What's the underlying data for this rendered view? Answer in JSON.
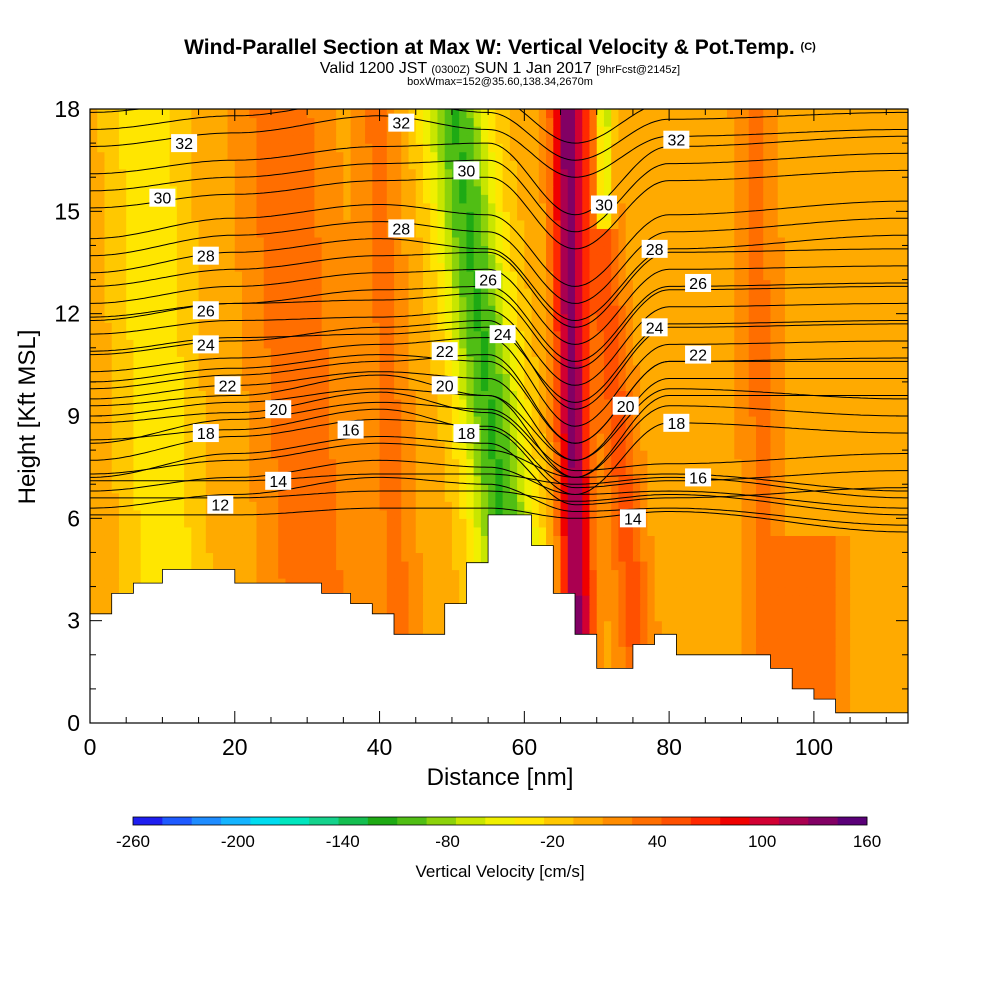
{
  "chart_data": {
    "type": "heatmap",
    "title": "Wind-Parallel Section at Max W: Vertical Velocity & Pot.Temp.",
    "title_mark": "(C)",
    "subtitle": {
      "valid_pre": "Valid 1200 JST",
      "valid_utc": "(0300Z)",
      "valid_date": "SUN 1 Jan 2017",
      "forecast": "[9hrFcst@2145z]"
    },
    "box_info": "boxWmax=152@35.60,138.34,2670m",
    "xlabel": "Distance [nm]",
    "ylabel": "Height [Kft MSL]",
    "xlim": [
      0,
      113
    ],
    "ylim": [
      0,
      18
    ],
    "x_ticks": [
      "0",
      "20",
      "40",
      "60",
      "80",
      "100"
    ],
    "y_ticks": [
      "0",
      "3",
      "6",
      "9",
      "12",
      "15",
      "18"
    ],
    "colorbar": {
      "title": "Vertical Velocity [cm/s]",
      "range": [
        -260,
        160
      ],
      "tick_labels": [
        "-260",
        "-200",
        "-140",
        "-80",
        "-20",
        "40",
        "100",
        "160"
      ],
      "colors": [
        "#1e1ef0",
        "#1e5aff",
        "#1e8cff",
        "#14b4ff",
        "#00dcf0",
        "#00e6be",
        "#14d28c",
        "#14be50",
        "#1eaa14",
        "#50be14",
        "#8cd20a",
        "#c8e600",
        "#f0f000",
        "#ffe600",
        "#ffc800",
        "#ffaa00",
        "#ff8c00",
        "#ff6e00",
        "#ff5000",
        "#ff2800",
        "#f00000",
        "#d20032",
        "#aa0050",
        "#820064",
        "#5a0078"
      ]
    },
    "terrain_profile": {
      "x": [
        0,
        3,
        3,
        6,
        6,
        10,
        10,
        20,
        20,
        32,
        32,
        36,
        36,
        39,
        39,
        42,
        42,
        49,
        49,
        52,
        52,
        55,
        55,
        59,
        59,
        61,
        61,
        64,
        64,
        67,
        67,
        70,
        70,
        75,
        75,
        78,
        78,
        81,
        81,
        94,
        94,
        97,
        97,
        100,
        100,
        103,
        103,
        107,
        107,
        113
      ],
      "y": [
        3.2,
        3.2,
        3.8,
        3.8,
        4.1,
        4.1,
        4.5,
        4.5,
        4.1,
        4.1,
        3.8,
        3.8,
        3.5,
        3.5,
        3.2,
        3.2,
        2.6,
        2.6,
        3.5,
        3.5,
        4.7,
        4.7,
        6.1,
        6.1,
        6.1,
        6.1,
        5.2,
        5.2,
        3.8,
        3.8,
        2.6,
        2.6,
        1.6,
        1.6,
        2.3,
        2.3,
        2.6,
        2.6,
        2.0,
        2.0,
        1.6,
        1.6,
        1.0,
        1.0,
        0.7,
        0.7,
        0.3,
        0.3,
        0.3,
        0.3
      ]
    },
    "vertical_velocity_features": [
      {
        "x_center": 57,
        "tilt": 0.55,
        "x_width": 4.5,
        "value": -110
      },
      {
        "x_center": 67,
        "tilt": 0.1,
        "x_width": 2.2,
        "value": 130
      },
      {
        "x_center": 71,
        "tilt": 0.0,
        "x_width": 1.2,
        "value": -100,
        "y_min": 14.5
      },
      {
        "x_center": 74,
        "tilt": 0.4,
        "x_width": 2.5,
        "value": 50
      },
      {
        "x_center": 30,
        "tilt": 0.3,
        "x_width": 6,
        "value": 40
      },
      {
        "x_center": 42,
        "tilt": 0.2,
        "x_width": 3,
        "value": 30
      },
      {
        "x_center": 10,
        "tilt": 0.2,
        "x_width": 5,
        "value": -40
      },
      {
        "x_center": 93,
        "tilt": 0.1,
        "x_width": 3,
        "value": 30
      },
      {
        "x_center": 100,
        "tilt": 0,
        "x_width": 4,
        "value": 40,
        "y_max": 5.5
      }
    ],
    "isentropes": [
      {
        "label": "12",
        "heights": [
          6.1,
          6.1,
          6.3,
          6.3,
          6.0,
          6.2,
          5.6
        ]
      },
      {
        "label": "14",
        "heights": [
          6.3,
          6.7,
          7.2,
          7.0,
          6.2,
          6.3,
          5.8
        ]
      },
      {
        "label": "16",
        "heights": [
          7.2,
          7.9,
          8.4,
          8.2,
          6.4,
          6.6,
          6.9
        ]
      },
      {
        "label": "18",
        "heights": [
          8.3,
          8.6,
          9.2,
          8.6,
          6.7,
          8.8,
          8.5
        ]
      },
      {
        "label": "20",
        "heights": [
          9.0,
          9.4,
          9.8,
          9.6,
          7.2,
          9.6,
          9.6
        ]
      },
      {
        "label": "22",
        "heights": [
          9.8,
          10.2,
          10.6,
          10.8,
          8.2,
          10.6,
          10.7
        ]
      },
      {
        "label": "24",
        "heights": [
          10.9,
          11.3,
          11.4,
          11.6,
          9.4,
          11.7,
          11.8
        ]
      },
      {
        "label": "26",
        "heights": [
          11.8,
          12.3,
          12.7,
          12.8,
          10.6,
          12.8,
          12.9
        ]
      },
      {
        "label": "28",
        "heights": [
          13.2,
          13.8,
          14.2,
          13.9,
          11.8,
          13.9,
          14.3
        ]
      },
      {
        "label": "30",
        "heights": [
          15.1,
          15.5,
          15.9,
          16.0,
          13.9,
          15.9,
          16.2
        ]
      },
      {
        "label": "32",
        "heights": [
          16.9,
          17.3,
          17.8,
          17.4,
          16.0,
          17.2,
          17.4
        ]
      }
    ],
    "isentrope_x": [
      0,
      20,
      40,
      55,
      67,
      80,
      113
    ],
    "contour_labels": [
      {
        "text": "32",
        "x": 13,
        "y": 17.0
      },
      {
        "text": "32",
        "x": 43,
        "y": 17.6
      },
      {
        "text": "32",
        "x": 81,
        "y": 17.1
      },
      {
        "text": "30",
        "x": 10,
        "y": 15.4
      },
      {
        "text": "30",
        "x": 52,
        "y": 16.2
      },
      {
        "text": "30",
        "x": 71,
        "y": 15.2
      },
      {
        "text": "28",
        "x": 16,
        "y": 13.7
      },
      {
        "text": "28",
        "x": 43,
        "y": 14.5
      },
      {
        "text": "28",
        "x": 78,
        "y": 13.9
      },
      {
        "text": "26",
        "x": 16,
        "y": 12.1
      },
      {
        "text": "26",
        "x": 55,
        "y": 13.0
      },
      {
        "text": "26",
        "x": 84,
        "y": 12.9
      },
      {
        "text": "24",
        "x": 16,
        "y": 11.1
      },
      {
        "text": "24",
        "x": 57,
        "y": 11.4
      },
      {
        "text": "24",
        "x": 78,
        "y": 11.6
      },
      {
        "text": "22",
        "x": 19,
        "y": 9.9
      },
      {
        "text": "22",
        "x": 49,
        "y": 10.9
      },
      {
        "text": "22",
        "x": 84,
        "y": 10.8
      },
      {
        "text": "20",
        "x": 26,
        "y": 9.2
      },
      {
        "text": "20",
        "x": 49,
        "y": 9.9
      },
      {
        "text": "20",
        "x": 74,
        "y": 9.3
      },
      {
        "text": "18",
        "x": 16,
        "y": 8.5
      },
      {
        "text": "18",
        "x": 52,
        "y": 8.5
      },
      {
        "text": "18",
        "x": 81,
        "y": 8.8
      },
      {
        "text": "16",
        "x": 36,
        "y": 8.6
      },
      {
        "text": "16",
        "x": 84,
        "y": 7.2
      },
      {
        "text": "14",
        "x": 26,
        "y": 7.1
      },
      {
        "text": "14",
        "x": 75,
        "y": 6.0
      },
      {
        "text": "12",
        "x": 18,
        "y": 6.4
      }
    ]
  }
}
